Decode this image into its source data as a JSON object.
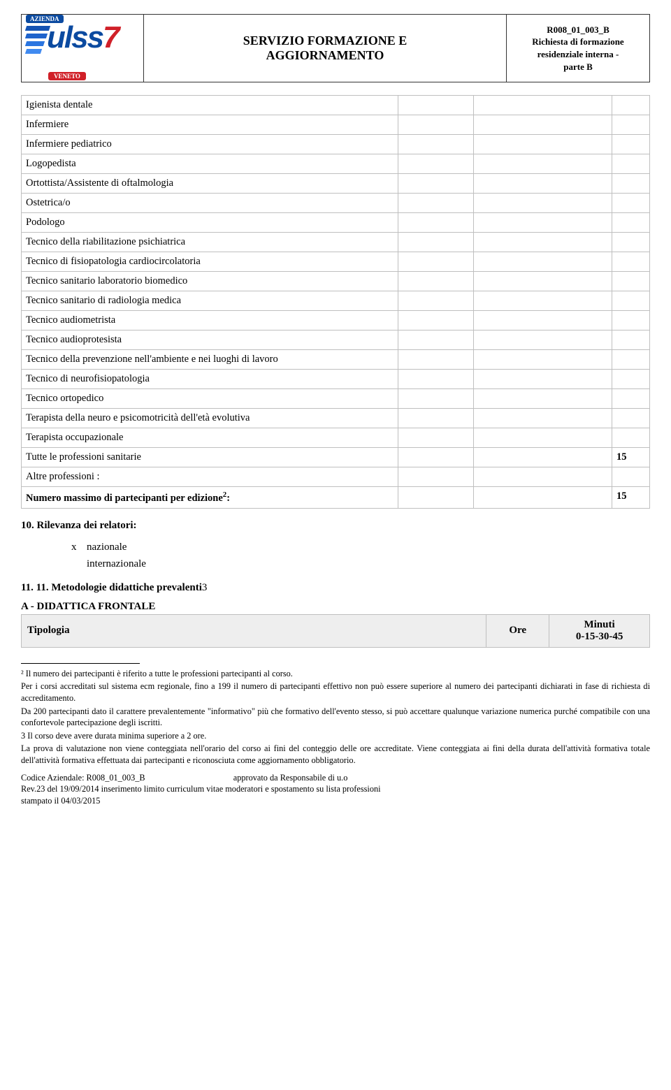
{
  "doc": {
    "title_line1": "SERVIZIO FORMAZIONE E",
    "title_line2": "AGGIORNAMENTO",
    "code": "R008_01_003_B",
    "desc_line1": "Richiesta di formazione",
    "desc_line2": "residenziale interna -",
    "desc_line3": "parte B"
  },
  "logo": {
    "azienda": "AZIENDA",
    "name": "ulss",
    "num": "7",
    "region": "VENETO"
  },
  "rows": [
    {
      "label": "Igienista dentale",
      "val": ""
    },
    {
      "label": "Infermiere",
      "val": ""
    },
    {
      "label": "Infermiere pediatrico",
      "val": ""
    },
    {
      "label": "Logopedista",
      "val": ""
    },
    {
      "label": "Ortottista/Assistente di oftalmologia",
      "val": ""
    },
    {
      "label": "Ostetrica/o",
      "val": ""
    },
    {
      "label": "Podologo",
      "val": ""
    },
    {
      "label": "Tecnico della riabilitazione psichiatrica",
      "val": ""
    },
    {
      "label": "Tecnico di fisiopatologia cardiocircolatoria",
      "val": ""
    },
    {
      "label": "Tecnico sanitario laboratorio biomedico",
      "val": ""
    },
    {
      "label": "Tecnico sanitario di radiologia medica",
      "val": ""
    },
    {
      "label": "Tecnico audiometrista",
      "val": ""
    },
    {
      "label": "Tecnico audioprotesista",
      "val": ""
    },
    {
      "label": "Tecnico della prevenzione nell'ambiente e nei luoghi di lavoro",
      "val": ""
    },
    {
      "label": "Tecnico di neurofisiopatologia",
      "val": ""
    },
    {
      "label": "Tecnico ortopedico",
      "val": ""
    },
    {
      "label": "Terapista della neuro e psicomotricità dell'età evolutiva",
      "val": ""
    },
    {
      "label": "Terapista occupazionale",
      "val": ""
    },
    {
      "label": "Tutte le professioni sanitarie",
      "val": "15"
    },
    {
      "label": "Altre professioni :",
      "val": ""
    }
  ],
  "summary": {
    "label_pre": "Numero massimo di partecipanti  per edizione",
    "sup": "2",
    "label_post": ":",
    "val": "15"
  },
  "s10": {
    "heading": "10.      Rilevanza dei relatori:",
    "opt1_mark": "x",
    "opt1": "nazionale",
    "opt2": "internazionale"
  },
  "s11_heading": "11.      11. Metodologie didattiche prevalenti",
  "s11_sup": "3",
  "s11_sub": "A - DIDATTICA FRONTALE",
  "tipologia": {
    "h1": "Tipologia",
    "h2": "Ore",
    "h3_l1": "Minuti",
    "h3_l2": "0-15-30-45"
  },
  "fn": {
    "f2": "² Il numero dei partecipanti è riferito a tutte le professioni partecipanti al corso.",
    "p1": "Per i corsi accreditati sul sistema ecm regionale, fino a 199 il numero di partecipanti effettivo non può essere superiore al numero dei partecipanti dichiarati in fase di richiesta di accreditamento.",
    "p2": "Da 200 partecipanti dato il carattere prevalentemente \"informativo\" più che formativo dell'evento stesso, si può accettare qualunque variazione numerica purché compatibile con una confortevole partecipazione degli iscritti.",
    "f3": "3 Il corso deve avere durata minima superiore a 2 ore.",
    "p3": "La prova di valutazione non viene conteggiata nell'orario del corso ai fini del conteggio delle ore accreditate. Viene conteggiata ai fini della durata dell'attività formativa totale dell'attività formativa effettuata dai partecipanti e riconosciuta come aggiornamento obbligatorio."
  },
  "footer": {
    "l1a": "Codice Aziendale: R008_01_003_B",
    "l1b": "approvato da Responsabile di u.o",
    "l2": "Rev.23 del 19/09/2014 inserimento limito curriculum vitae  moderatori e spostamento su lista professioni",
    "l3": "stampato il 04/03/2015"
  }
}
